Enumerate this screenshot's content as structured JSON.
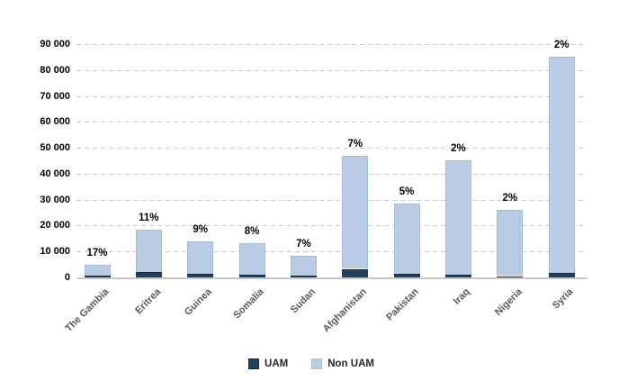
{
  "chart_data": {
    "type": "bar",
    "stacked": true,
    "title": "",
    "xlabel": "",
    "ylabel": "",
    "categories": [
      "The Gambia",
      "Eritrea",
      "Guinea",
      "Somalia",
      "Sudan",
      "Afghanistan",
      "Pakistan",
      "Iraq",
      "Nigeria",
      "Syria"
    ],
    "series": [
      {
        "name": "UAM",
        "color": "#24405F",
        "border_color": "#16293F",
        "values": [
          800,
          2000,
          1250,
          1050,
          580,
          3300,
          1400,
          900,
          520,
          1700
        ]
      },
      {
        "name": "Non UAM",
        "color": "#B9CCE3",
        "border_color": "#A4BCD9",
        "values": [
          3900,
          16300,
          12550,
          12050,
          7720,
          43700,
          27100,
          44300,
          25480,
          83300
        ]
      }
    ],
    "totals": [
      4700,
      18300,
      13800,
      13100,
      8300,
      47000,
      28500,
      45200,
      26000,
      85000
    ],
    "bar_labels": [
      "17%",
      "11%",
      "9%",
      "8%",
      "7%",
      "7%",
      "5%",
      "2%",
      "2%",
      "2%"
    ],
    "y_axis": {
      "min": 0,
      "max": 90000,
      "tick_interval": 10000,
      "tick_labels": [
        "0",
        "10 000",
        "20 000",
        "30 000",
        "40 000",
        "50 000",
        "60 000",
        "70 000",
        "80 000",
        "90 000"
      ]
    },
    "grid": "horizontal-dashed",
    "legend": {
      "position": "bottom-center",
      "items": [
        "UAM",
        "Non UAM"
      ]
    }
  },
  "colors": {
    "background": "#FFFFFF",
    "uam": "#24405F",
    "non_uam": "#B9CCE3",
    "gridline": "#C9C9C9",
    "axis_line": "#C9C9C9",
    "y_tick_text": "#000000",
    "x_tick_text": "#595959",
    "bar_label_text": "#000000",
    "legend_text": "#262626"
  }
}
